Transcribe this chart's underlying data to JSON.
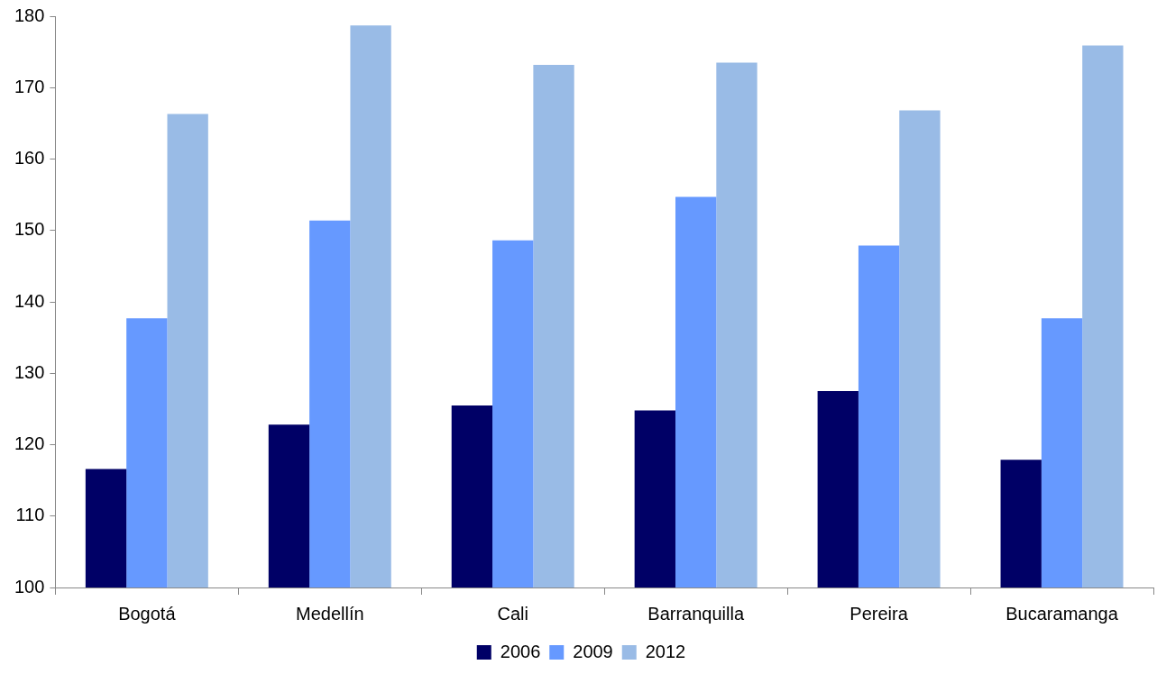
{
  "chart_data": {
    "type": "bar",
    "categories": [
      "Bogotá",
      "Medellín",
      "Cali",
      "Barranquilla",
      "Pereira",
      "Bucaramanga"
    ],
    "series": [
      {
        "name": "2006",
        "color": "#000066",
        "values": [
          116.6,
          122.8,
          125.5,
          124.8,
          127.5,
          117.9
        ]
      },
      {
        "name": "2009",
        "color": "#6699ff",
        "values": [
          137.7,
          151.4,
          148.6,
          154.7,
          147.9,
          137.7
        ]
      },
      {
        "name": "2012",
        "color": "#99bbe6",
        "values": [
          166.3,
          178.7,
          173.2,
          173.5,
          166.8,
          175.9
        ]
      }
    ],
    "ylim": [
      100,
      180
    ],
    "yticks": [
      100,
      110,
      120,
      130,
      140,
      150,
      160,
      170,
      180
    ],
    "grid": false,
    "legend": "bottom"
  }
}
